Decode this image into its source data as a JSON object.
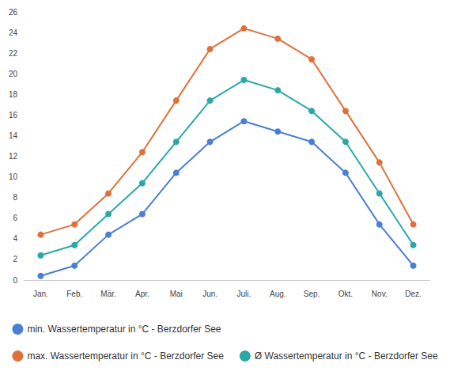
{
  "chart_data": {
    "type": "line",
    "categories": [
      "Jan.",
      "Feb.",
      "Mär.",
      "Apr.",
      "Mai",
      "Jun.",
      "Juli.",
      "Aug.",
      "Sep.",
      "Okt.",
      "Nov.",
      "Dez."
    ],
    "series": [
      {
        "name": "min. Wassertemperatur in °C - Berzdorfer See",
        "color": "#4a7fd4",
        "values": [
          0.4,
          1.4,
          4.4,
          6.4,
          10.4,
          13.4,
          15.4,
          14.4,
          13.4,
          10.4,
          5.4,
          1.4
        ]
      },
      {
        "name": "max. Wassertemperatur in °C - Berzdorfer See",
        "color": "#e0703a",
        "values": [
          4.4,
          5.4,
          8.4,
          12.4,
          17.4,
          22.4,
          24.4,
          23.4,
          21.4,
          16.4,
          11.4,
          5.4
        ]
      },
      {
        "name": "Ø Wassertemperatur in °C - Berzdorfer See",
        "color": "#2aa8a8",
        "values": [
          2.4,
          3.4,
          6.4,
          9.4,
          13.4,
          17.4,
          19.4,
          18.4,
          16.4,
          13.4,
          8.4,
          3.4
        ]
      }
    ],
    "ylim": [
      0,
      26
    ],
    "yticks": [
      0,
      2,
      4,
      6,
      8,
      10,
      12,
      14,
      16,
      18,
      20,
      22,
      24,
      26
    ],
    "grid": false,
    "legend": "bottom",
    "marker": "circle"
  }
}
